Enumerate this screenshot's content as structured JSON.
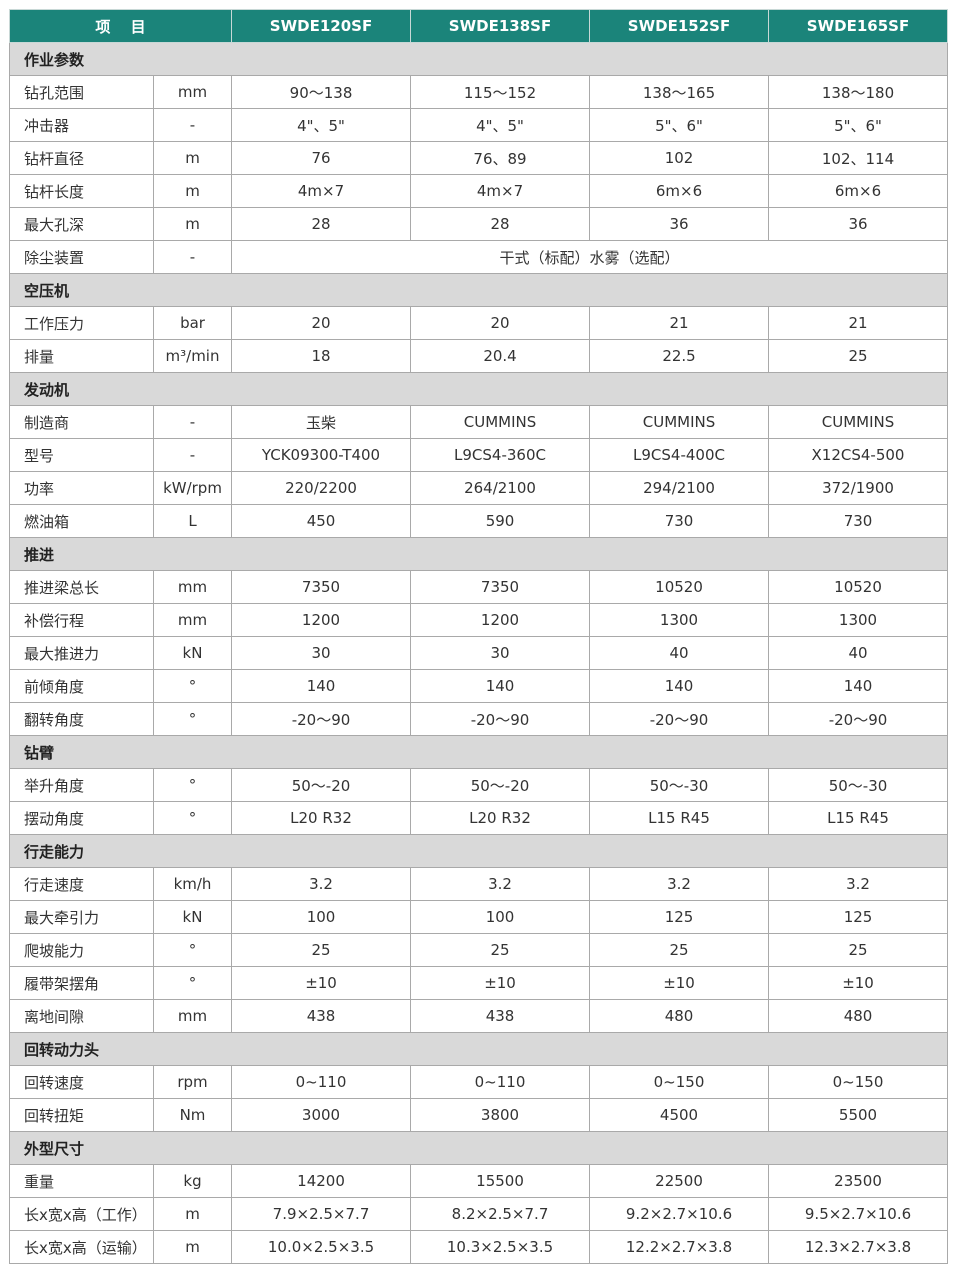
{
  "header": {
    "item": "项　 目",
    "models": [
      "SWDE120SF",
      "SWDE138SF",
      "SWDE152SF",
      "SWDE165SF"
    ]
  },
  "sections": [
    {
      "title": "作业参数",
      "rows": [
        {
          "label": "钻孔范围",
          "unit": "mm",
          "values": [
            "90～138",
            "115～152",
            "138～165",
            "138～180"
          ]
        },
        {
          "label": "冲击器",
          "unit": "-",
          "values": [
            "4\"、5\"",
            "4\"、5\"",
            "5\"、6\"",
            "5\"、6\""
          ]
        },
        {
          "label": "钻杆直径",
          "unit": "m",
          "values": [
            "76",
            "76、89",
            "102",
            "102、114"
          ]
        },
        {
          "label": "钻杆长度",
          "unit": "m",
          "values": [
            "4m×7",
            "4m×7",
            "6m×6",
            "6m×6"
          ]
        },
        {
          "label": "最大孔深",
          "unit": "m",
          "values": [
            "28",
            "28",
            "36",
            "36"
          ]
        },
        {
          "label": "除尘装置",
          "unit": "-",
          "merged": "干式（标配）水雾（选配）"
        }
      ]
    },
    {
      "title": "空压机",
      "rows": [
        {
          "label": "工作压力",
          "unit": "bar",
          "values": [
            "20",
            "20",
            "21",
            "21"
          ]
        },
        {
          "label": "排量",
          "unit": "m³/min",
          "values": [
            "18",
            "20.4",
            "22.5",
            "25"
          ]
        }
      ]
    },
    {
      "title": "发动机",
      "rows": [
        {
          "label": "制造商",
          "unit": "-",
          "values": [
            "玉柴",
            "CUMMINS",
            "CUMMINS",
            "CUMMINS"
          ]
        },
        {
          "label": "型号",
          "unit": "-",
          "values": [
            "YCK09300-T400",
            "L9CS4-360C",
            "L9CS4-400C",
            "X12CS4-500"
          ]
        },
        {
          "label": "功率",
          "unit": "kW/rpm",
          "values": [
            "220/2200",
            "264/2100",
            "294/2100",
            "372/1900"
          ]
        },
        {
          "label": "燃油箱",
          "unit": "L",
          "values": [
            "450",
            "590",
            "730",
            "730"
          ]
        }
      ]
    },
    {
      "title": "推进",
      "rows": [
        {
          "label": "推进梁总长",
          "unit": "mm",
          "values": [
            "7350",
            "7350",
            "10520",
            "10520"
          ]
        },
        {
          "label": "补偿行程",
          "unit": "mm",
          "values": [
            "1200",
            "1200",
            "1300",
            "1300"
          ]
        },
        {
          "label": "最大推进力",
          "unit": "kN",
          "values": [
            "30",
            "30",
            "40",
            "40"
          ]
        },
        {
          "label": "前倾角度",
          "unit": "°",
          "values": [
            "140",
            "140",
            "140",
            "140"
          ]
        },
        {
          "label": "翻转角度",
          "unit": "°",
          "values": [
            "-20～90",
            "-20～90",
            "-20～90",
            "-20～90"
          ]
        }
      ]
    },
    {
      "title": "钻臂",
      "rows": [
        {
          "label": "举升角度",
          "unit": "°",
          "values": [
            "50～-20",
            "50～-20",
            "50～-30",
            "50～-30"
          ]
        },
        {
          "label": "摆动角度",
          "unit": "°",
          "values": [
            "L20  R32",
            "L20  R32",
            "L15  R45",
            "L15  R45"
          ]
        }
      ]
    },
    {
      "title": "行走能力",
      "rows": [
        {
          "label": "行走速度",
          "unit": "km/h",
          "values": [
            "3.2",
            "3.2",
            "3.2",
            "3.2"
          ]
        },
        {
          "label": "最大牵引力",
          "unit": "kN",
          "values": [
            "100",
            "100",
            "125",
            "125"
          ]
        },
        {
          "label": "爬坡能力",
          "unit": "°",
          "values": [
            "25",
            "25",
            "25",
            "25"
          ]
        },
        {
          "label": "履带架摆角",
          "unit": "°",
          "values": [
            "±10",
            "±10",
            "±10",
            "±10"
          ]
        },
        {
          "label": "离地间隙",
          "unit": "mm",
          "values": [
            "438",
            "438",
            "480",
            "480"
          ]
        }
      ]
    },
    {
      "title": "回转动力头",
      "rows": [
        {
          "label": "回转速度",
          "unit": "rpm",
          "values": [
            "0~110",
            "0~110",
            "0~150",
            "0~150"
          ]
        },
        {
          "label": "回转扭矩",
          "unit": "Nm",
          "values": [
            "3000",
            "3800",
            "4500",
            "5500"
          ]
        }
      ]
    },
    {
      "title": "外型尺寸",
      "rows": [
        {
          "label": "重量",
          "unit": "kg",
          "values": [
            "14200",
            "15500",
            "22500",
            "23500"
          ]
        },
        {
          "label": "长x宽x高（工作）",
          "unit": "m",
          "values": [
            "7.9×2.5×7.7",
            "8.2×2.5×7.7",
            "9.2×2.7×10.6",
            "9.5×2.7×10.6"
          ]
        },
        {
          "label": "长x宽x高（运输）",
          "unit": "m",
          "values": [
            "10.0×2.5×3.5",
            "10.3×2.5×3.5",
            "12.2×2.7×3.8",
            "12.3×2.7×3.8"
          ]
        }
      ]
    }
  ]
}
